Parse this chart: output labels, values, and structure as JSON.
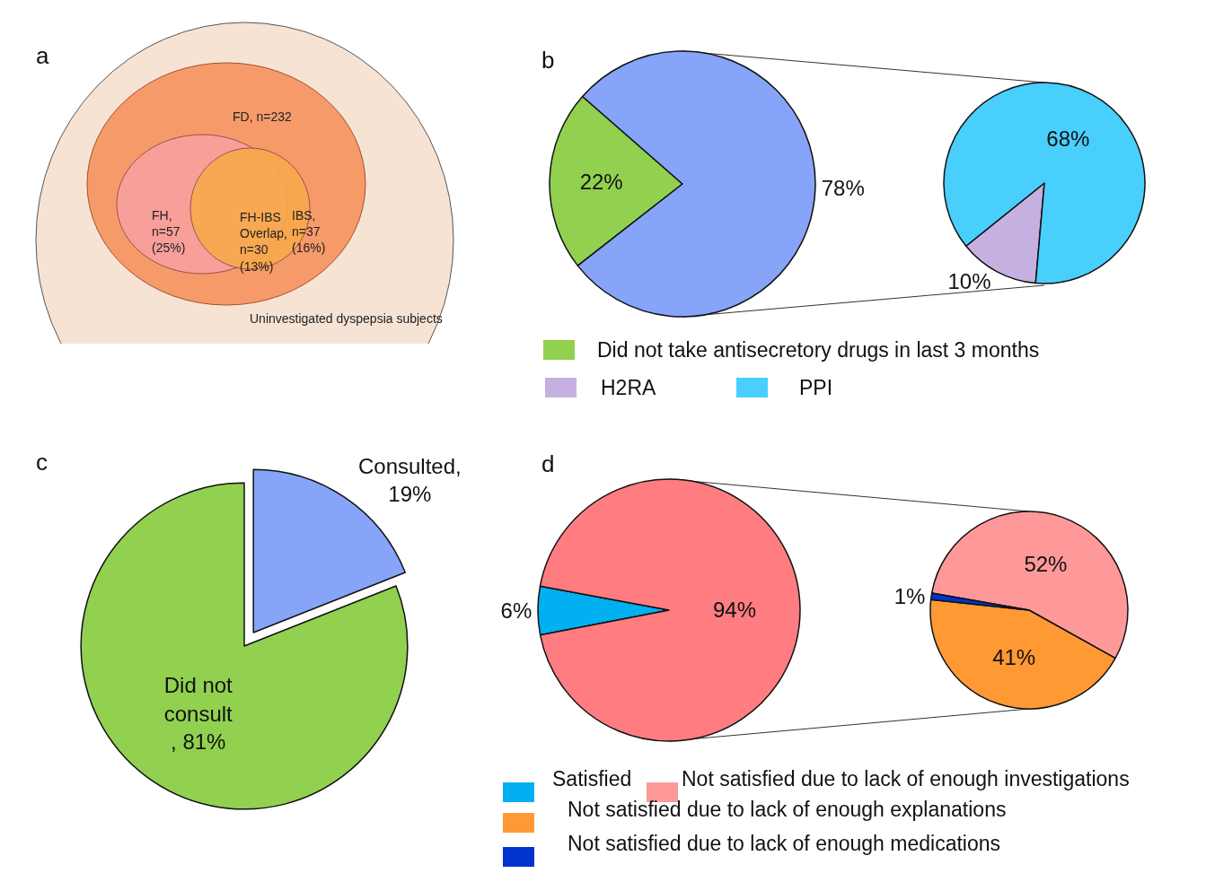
{
  "chart_data": [
    {
      "type": "other",
      "title": "a",
      "annotations": [
        "FD, n=232",
        "FH,\nn=57\n(25%)",
        "FH-IBS\nOverlap,\nn=30\n(13%)",
        "IBS,\nn=37\n(16%)",
        "Uninvestigated dyspepsia subjects"
      ]
    },
    {
      "type": "pie",
      "title": "b",
      "categories": [
        "Did not take antisecretory drugs in last 3 months",
        null
      ],
      "values": [
        22,
        78
      ],
      "value_labels": [
        "22%",
        "78%"
      ],
      "colors": [
        "#92d050",
        "#86a4f8"
      ],
      "legend": "bottom"
    },
    {
      "type": "pie",
      "categories": [
        "H2RA",
        "PPI"
      ],
      "values": [
        10,
        68
      ],
      "value_labels": [
        "10%",
        "68%"
      ],
      "colors": [
        "#c5b0e0",
        "#48cffc"
      ],
      "legend": "bottom"
    },
    {
      "type": "pie",
      "title": "c",
      "categories": [
        null,
        null
      ],
      "values": [
        19,
        81
      ],
      "value_labels": [
        "Consulted,\n19%",
        "Did not\nconsult\n, 81%"
      ],
      "colors": [
        "#86a4f8",
        "#92d050"
      ]
    },
    {
      "type": "pie",
      "title": "d",
      "categories": [
        "Satisfied",
        null
      ],
      "values": [
        6,
        94
      ],
      "value_labels": [
        "6%",
        "94%"
      ],
      "colors": [
        "#00b0f0",
        "#ff7c80"
      ],
      "legend": "bottom"
    },
    {
      "type": "pie",
      "categories": [
        "Not satisfied due to lack of enough investigations",
        "Not satisfied due to lack of enough explanations",
        "Not satisfied due to lack of enough medications"
      ],
      "values": [
        52,
        41,
        1
      ],
      "value_labels": [
        "52%",
        "41%",
        "1%"
      ],
      "colors": [
        "#ff9999",
        "#ff9933",
        "#0033cc"
      ],
      "legend": "bottom"
    }
  ]
}
